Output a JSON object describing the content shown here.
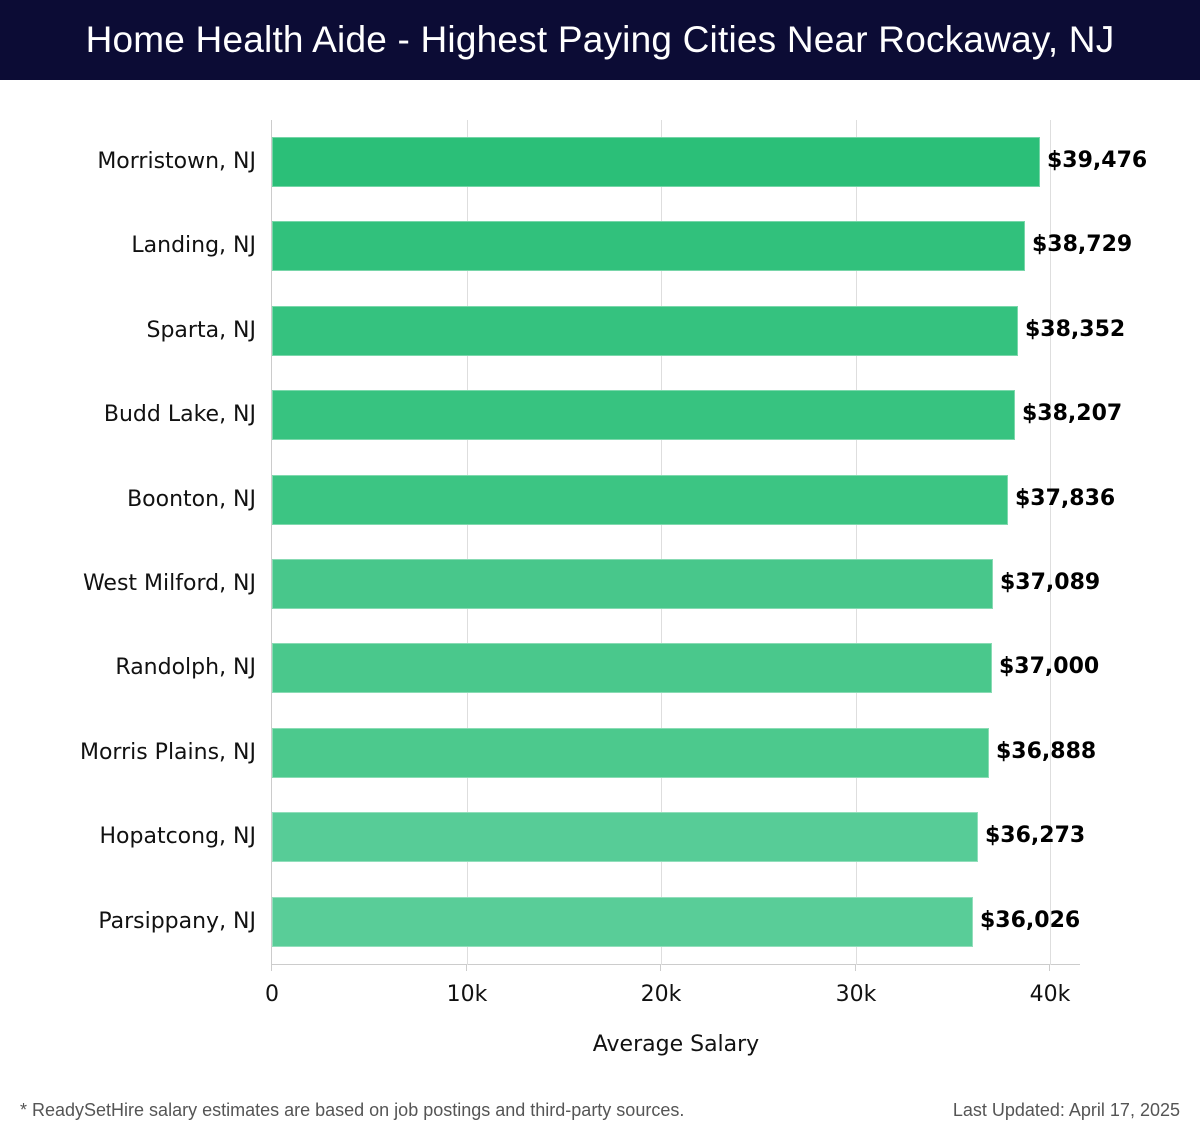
{
  "header": {
    "title": "Home Health Aide - Highest Paying Cities Near Rockaway, NJ"
  },
  "footer": {
    "note": "* ReadySetHire salary estimates are based on job postings and third-party sources.",
    "updated": "Last Updated: April 17, 2025"
  },
  "chart_data": {
    "type": "bar",
    "orientation": "horizontal",
    "title": "Home Health Aide - Highest Paying Cities Near Rockaway, NJ",
    "xlabel": "Average Salary",
    "ylabel": "",
    "xlim": [
      0,
      41500
    ],
    "grid": true,
    "legend": null,
    "x_ticks": [
      0,
      10000,
      20000,
      30000,
      40000
    ],
    "x_tick_labels": [
      "0",
      "10k",
      "20k",
      "30k",
      "40k"
    ],
    "categories": [
      "Morristown, NJ",
      "Landing, NJ",
      "Sparta, NJ",
      "Budd Lake, NJ",
      "Boonton, NJ",
      "West Milford, NJ",
      "Randolph, NJ",
      "Morris Plains, NJ",
      "Hopatcong, NJ",
      "Parsippany, NJ"
    ],
    "values": [
      39476,
      38729,
      38352,
      38207,
      37836,
      37089,
      37000,
      36888,
      36273,
      36026
    ],
    "value_labels": [
      "$39,476",
      "$38,729",
      "$38,352",
      "$38,207",
      "$37,836",
      "$37,089",
      "$37,000",
      "$36,888",
      "$36,273",
      "$36,026"
    ],
    "colors": [
      "#2bbf78",
      "#31c17c",
      "#35c27f",
      "#37c380",
      "#3cc583",
      "#48c78b",
      "#4ac88c",
      "#4cc98d",
      "#57cc97",
      "#59cd98"
    ]
  }
}
